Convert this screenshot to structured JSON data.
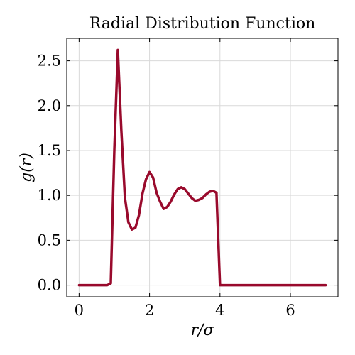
{
  "chart_data": {
    "type": "line",
    "title": "Radial Distribution Function",
    "xlabel": "r/σ",
    "ylabel": "g(r)",
    "xlim": [
      -0.35,
      7.35
    ],
    "ylim": [
      -0.13,
      2.75
    ],
    "x_ticks": [
      0,
      2,
      4,
      6
    ],
    "x_tick_labels": [
      "0",
      "2",
      "4",
      "6"
    ],
    "y_ticks": [
      0.0,
      0.5,
      1.0,
      1.5,
      2.0,
      2.5
    ],
    "y_tick_labels": [
      "0.0",
      "0.5",
      "1.0",
      "1.5",
      "2.0",
      "2.5"
    ],
    "grid": true,
    "colors": {
      "line": "#990a2c"
    },
    "series": [
      {
        "x": [
          0.0,
          0.1,
          0.2,
          0.3,
          0.4,
          0.5,
          0.6,
          0.7,
          0.8,
          0.9,
          1.0,
          1.1,
          1.2,
          1.3,
          1.4,
          1.5,
          1.6,
          1.7,
          1.8,
          1.9,
          2.0,
          2.1,
          2.2,
          2.3,
          2.4,
          2.5,
          2.6,
          2.7,
          2.8,
          2.9,
          3.0,
          3.1,
          3.2,
          3.3,
          3.4,
          3.5,
          3.6,
          3.7,
          3.8,
          3.9,
          4.0,
          4.5,
          5.0,
          5.5,
          6.0,
          6.5,
          7.0
        ],
        "y": [
          0.0,
          0.0,
          0.0,
          0.0,
          0.0,
          0.0,
          0.0,
          0.0,
          0.0,
          0.02,
          1.5,
          2.62,
          1.72,
          0.98,
          0.7,
          0.62,
          0.64,
          0.78,
          1.02,
          1.18,
          1.26,
          1.2,
          1.03,
          0.93,
          0.85,
          0.87,
          0.93,
          1.01,
          1.07,
          1.09,
          1.07,
          1.02,
          0.97,
          0.94,
          0.95,
          0.97,
          1.01,
          1.04,
          1.05,
          1.03,
          0.0,
          0.0,
          0.0,
          0.0,
          0.0,
          0.0,
          0.0
        ]
      }
    ]
  }
}
